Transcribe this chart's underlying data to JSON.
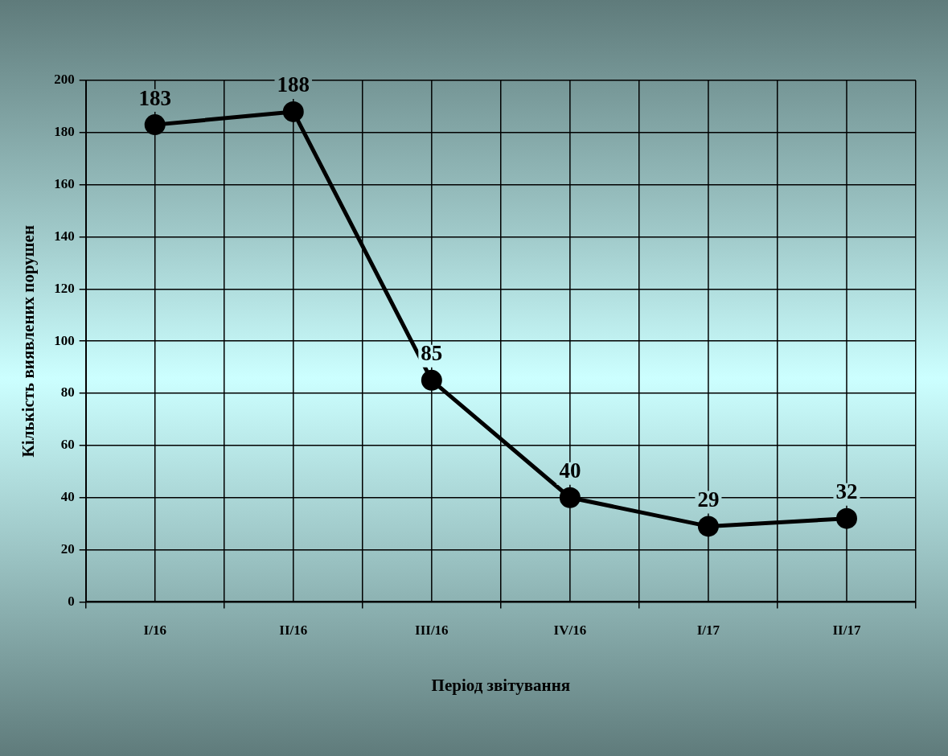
{
  "chart_data": {
    "type": "line",
    "xlabel": "Період звітування",
    "ylabel": "Кількість виявлених порушен",
    "categories": [
      "I/16",
      "II/16",
      "III/16",
      "IV/16",
      "I/17",
      "II/17"
    ],
    "series": [
      {
        "color": "#000000",
        "values": [
          183,
          188,
          85,
          40,
          29,
          32
        ]
      }
    ],
    "ylim": [
      0,
      200
    ],
    "yticks": [
      0,
      20,
      40,
      60,
      80,
      100,
      120,
      140,
      160,
      180,
      200
    ],
    "grid": true,
    "marker": "circle",
    "line_style": "solid",
    "data_labels": true,
    "legend": false
  }
}
